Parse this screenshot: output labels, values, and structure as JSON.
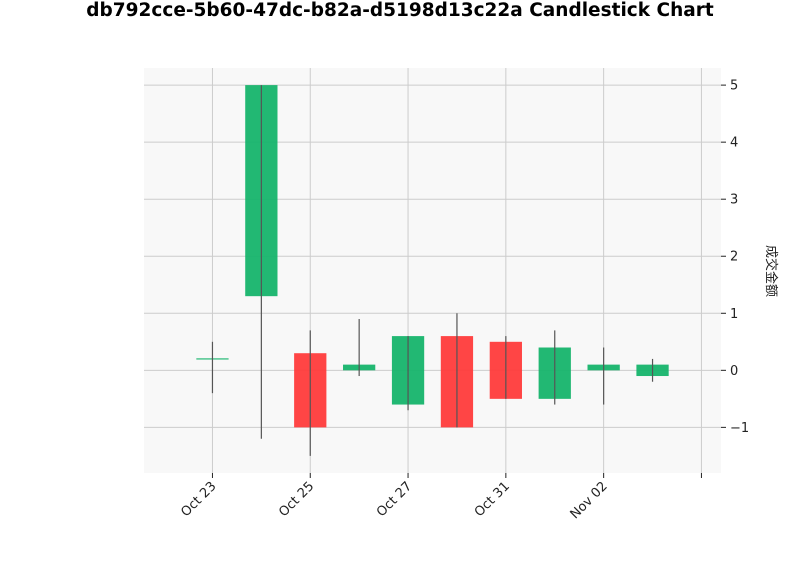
{
  "chart_data": {
    "type": "candlestick",
    "title": "db792cce-5b60-47dc-b82a-d5198d13c22a Candlestick Chart",
    "ylabel": "成交金额",
    "xlabel": "",
    "ylim": [
      -1.8,
      5.3
    ],
    "yticks": [
      -1,
      0,
      1,
      2,
      3,
      4,
      5
    ],
    "ytick_labels": [
      "−1",
      "0",
      "1",
      "2",
      "3",
      "4",
      "5"
    ],
    "xlim": [
      -1.4,
      10.4
    ],
    "xticks": [
      {
        "pos": 0,
        "label": "Oct 23"
      },
      {
        "pos": 2,
        "label": "Oct 25"
      },
      {
        "pos": 4,
        "label": "Oct 27"
      },
      {
        "pos": 6,
        "label": "Oct 31"
      },
      {
        "pos": 8,
        "label": "Nov 02"
      },
      {
        "pos": 10,
        "label": ""
      }
    ],
    "grid": true,
    "y_axis_side": "right",
    "up_color": "#16b46c",
    "down_color": "#ff3b3b",
    "candles": [
      {
        "open": 0.2,
        "high": 0.5,
        "low": -0.4,
        "close": 0.2
      },
      {
        "open": 1.3,
        "high": 5.0,
        "low": -1.2,
        "close": 5.0
      },
      {
        "open": 0.3,
        "high": 0.7,
        "low": -1.5,
        "close": -1.0
      },
      {
        "open": 0.0,
        "high": 0.9,
        "low": -0.1,
        "close": 0.1
      },
      {
        "open": -0.6,
        "high": 0.6,
        "low": -0.7,
        "close": 0.6
      },
      {
        "open": 0.6,
        "high": 1.0,
        "low": -1.0,
        "close": -1.0
      },
      {
        "open": 0.5,
        "high": 0.6,
        "low": -0.5,
        "close": -0.5
      },
      {
        "open": -0.5,
        "high": 0.7,
        "low": -0.6,
        "close": 0.4
      },
      {
        "open": 0.0,
        "high": 0.4,
        "low": -0.6,
        "close": 0.1
      },
      {
        "open": -0.1,
        "high": 0.2,
        "low": -0.2,
        "close": 0.1
      }
    ]
  }
}
